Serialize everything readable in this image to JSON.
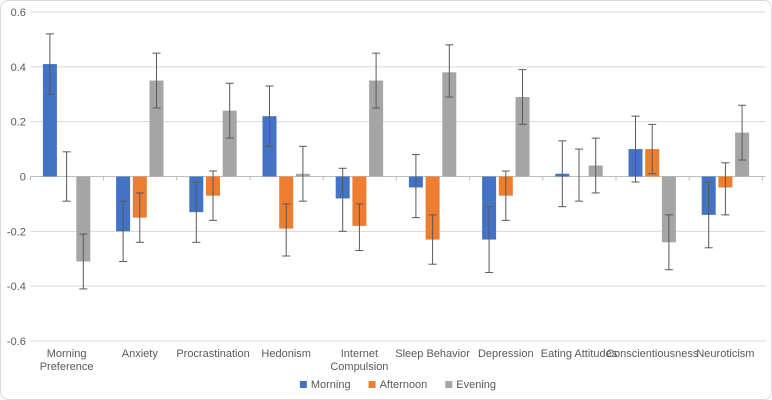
{
  "chart_data": {
    "type": "bar",
    "title": "",
    "xlabel": "",
    "ylabel": "",
    "grid": true,
    "legend_position": "bottom",
    "categories": [
      "Morning Preference",
      "Anxiety",
      "Procrastination",
      "Hedonism",
      "Internet Compulsion",
      "Sleep Behavior",
      "Depression",
      "Eating Attitudes",
      "Conscientiousness",
      "Neuroticism"
    ],
    "category_label_lines": [
      [
        "Morning",
        "Preference"
      ],
      [
        "Anxiety"
      ],
      [
        "Procrastination"
      ],
      [
        "Hedonism"
      ],
      [
        "Internet",
        "Compulsion"
      ],
      [
        "Sleep Behavior"
      ],
      [
        "Depression"
      ],
      [
        "Eating Attitudes"
      ],
      [
        "Conscientiousness"
      ],
      [
        "Neuroticism"
      ]
    ],
    "series": [
      {
        "name": "Morning",
        "color": "#4472C4",
        "values": [
          0.41,
          -0.2,
          -0.13,
          0.22,
          -0.08,
          -0.04,
          -0.23,
          0.01,
          0.1,
          -0.14
        ],
        "error_low": [
          0.3,
          -0.31,
          -0.24,
          0.11,
          -0.2,
          -0.15,
          -0.35,
          -0.11,
          -0.02,
          -0.26
        ],
        "error_high": [
          0.52,
          -0.09,
          -0.02,
          0.33,
          0.03,
          0.08,
          -0.11,
          0.13,
          0.22,
          -0.02
        ]
      },
      {
        "name": "Afternoon",
        "color": "#ED7D31",
        "values": [
          0.0,
          -0.15,
          -0.07,
          -0.19,
          -0.18,
          -0.23,
          -0.07,
          0.0,
          0.1,
          -0.04
        ],
        "error_low": [
          -0.09,
          -0.24,
          -0.16,
          -0.29,
          -0.27,
          -0.32,
          -0.16,
          -0.09,
          0.01,
          -0.14
        ],
        "error_high": [
          0.09,
          -0.06,
          0.02,
          -0.1,
          -0.1,
          -0.14,
          0.02,
          0.1,
          0.19,
          0.05
        ]
      },
      {
        "name": "Evening",
        "color": "#A5A5A5",
        "values": [
          -0.31,
          0.35,
          0.24,
          0.01,
          0.35,
          0.38,
          0.29,
          0.04,
          -0.24,
          0.16
        ],
        "error_low": [
          -0.41,
          0.25,
          0.14,
          -0.09,
          0.25,
          0.29,
          0.19,
          -0.06,
          -0.34,
          0.06
        ],
        "error_high": [
          -0.21,
          0.45,
          0.34,
          0.11,
          0.45,
          0.48,
          0.39,
          0.14,
          -0.14,
          0.26
        ]
      }
    ],
    "y_axis": {
      "min": -0.6,
      "max": 0.6,
      "tick_step": 0.2,
      "tick_labels": [
        "0.6",
        "0.4",
        "0.2",
        "0",
        "-0.2",
        "-0.4",
        "-0.6"
      ]
    },
    "colors": {
      "gridline": "#D9D9D9",
      "axis_line": "#BFBFBF",
      "error_bar": "#595959",
      "text": "#595959",
      "background": "#FFFFFF",
      "border": "#D9D9D9"
    }
  }
}
